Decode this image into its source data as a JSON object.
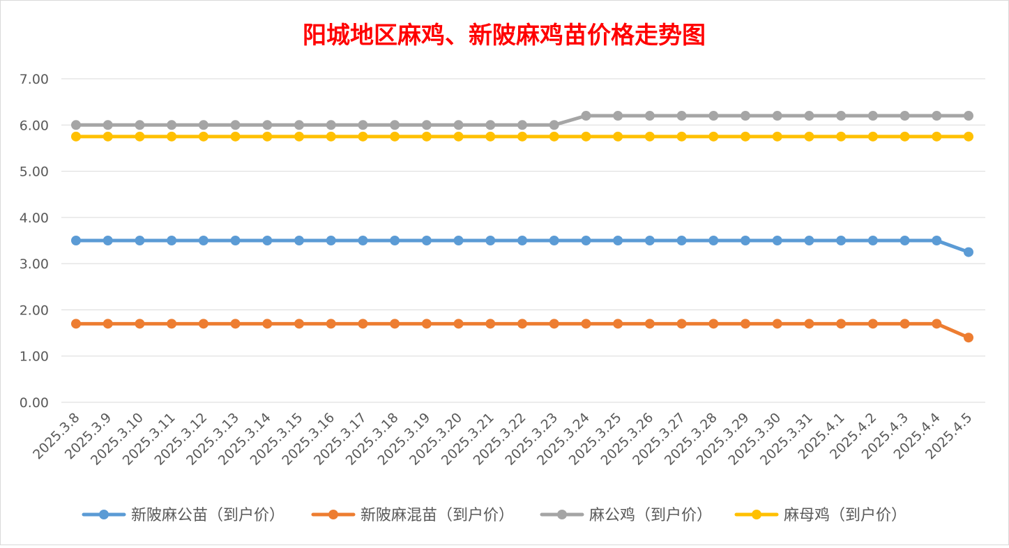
{
  "chart_data": {
    "type": "line",
    "title": "阳城地区麻鸡、新陂麻鸡苗价格走势图",
    "xlabel": "",
    "ylabel": "",
    "ylim": [
      0,
      7
    ],
    "yticks": [
      "0.00",
      "1.00",
      "2.00",
      "3.00",
      "4.00",
      "5.00",
      "6.00",
      "7.00"
    ],
    "grid": true,
    "legend": "bottom",
    "categories": [
      "2025.3.8",
      "2025.3.9",
      "2025.3.10",
      "2025.3.11",
      "2025.3.12",
      "2025.3.13",
      "2025.3.14",
      "2025.3.15",
      "2025.3.16",
      "2025.3.17",
      "2025.3.18",
      "2025.3.19",
      "2025.3.20",
      "2025.3.21",
      "2025.3.22",
      "2025.3.23",
      "2025.3.24",
      "2025.3.25",
      "2025.3.26",
      "2025.3.27",
      "2025.3.28",
      "2025.3.29",
      "2025.3.30",
      "2025.3.31",
      "2025.4.1",
      "2025.4.2",
      "2025.4.3",
      "2025.4.4",
      "2025.4.5"
    ],
    "series": [
      {
        "name": "新陂麻公苗（到户价）",
        "color": "#5B9BD5",
        "values": [
          3.5,
          3.5,
          3.5,
          3.5,
          3.5,
          3.5,
          3.5,
          3.5,
          3.5,
          3.5,
          3.5,
          3.5,
          3.5,
          3.5,
          3.5,
          3.5,
          3.5,
          3.5,
          3.5,
          3.5,
          3.5,
          3.5,
          3.5,
          3.5,
          3.5,
          3.5,
          3.5,
          3.5,
          3.25
        ]
      },
      {
        "name": "新陂麻混苗（到户价）",
        "color": "#ED7D31",
        "values": [
          1.7,
          1.7,
          1.7,
          1.7,
          1.7,
          1.7,
          1.7,
          1.7,
          1.7,
          1.7,
          1.7,
          1.7,
          1.7,
          1.7,
          1.7,
          1.7,
          1.7,
          1.7,
          1.7,
          1.7,
          1.7,
          1.7,
          1.7,
          1.7,
          1.7,
          1.7,
          1.7,
          1.7,
          1.4
        ]
      },
      {
        "name": "麻公鸡（到户价）",
        "color": "#A5A5A5",
        "values": [
          6.0,
          6.0,
          6.0,
          6.0,
          6.0,
          6.0,
          6.0,
          6.0,
          6.0,
          6.0,
          6.0,
          6.0,
          6.0,
          6.0,
          6.0,
          6.0,
          6.2,
          6.2,
          6.2,
          6.2,
          6.2,
          6.2,
          6.2,
          6.2,
          6.2,
          6.2,
          6.2,
          6.2,
          6.2
        ]
      },
      {
        "name": "麻母鸡（到户价）",
        "color": "#FFC000",
        "values": [
          5.75,
          5.75,
          5.75,
          5.75,
          5.75,
          5.75,
          5.75,
          5.75,
          5.75,
          5.75,
          5.75,
          5.75,
          5.75,
          5.75,
          5.75,
          5.75,
          5.75,
          5.75,
          5.75,
          5.75,
          5.75,
          5.75,
          5.75,
          5.75,
          5.75,
          5.75,
          5.75,
          5.75,
          5.75
        ]
      }
    ],
    "title_color": "#FF0000"
  }
}
